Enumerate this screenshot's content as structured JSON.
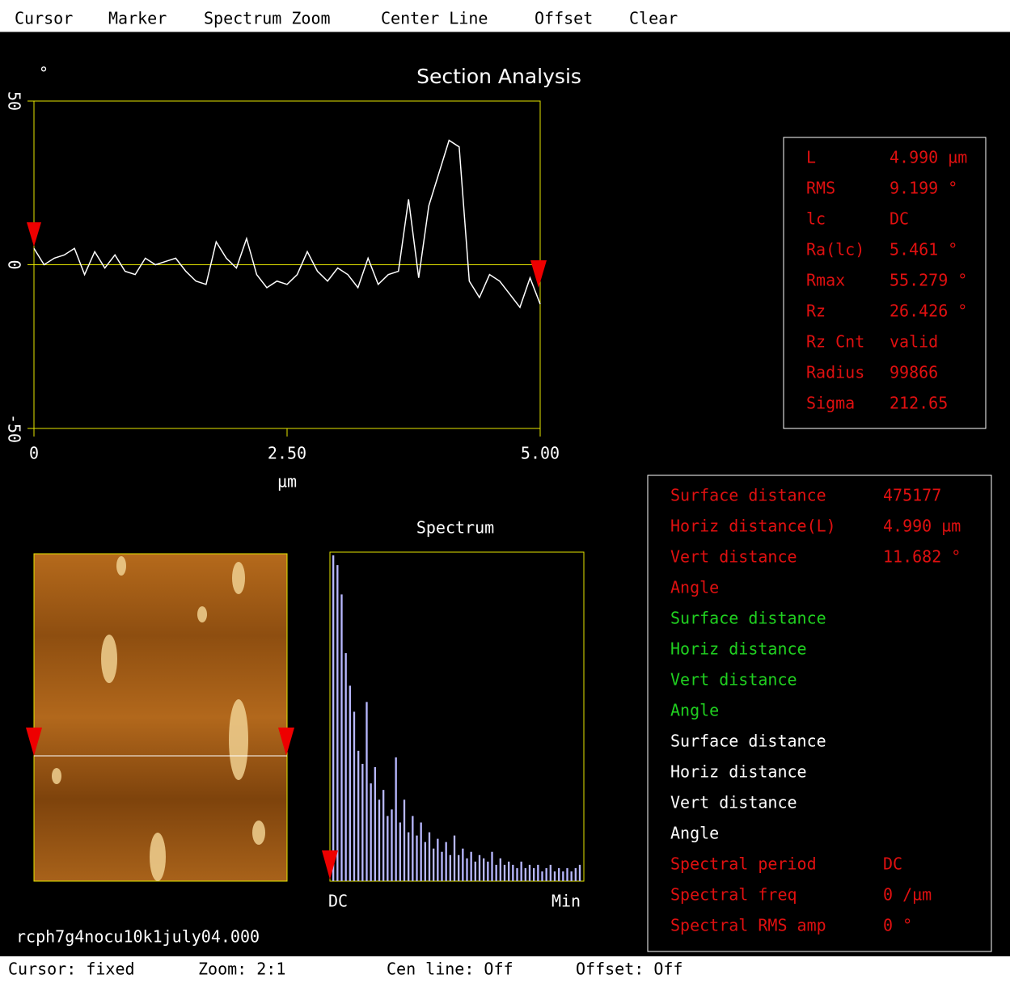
{
  "menu": [
    "Cursor",
    "Marker",
    "Spectrum Zoom",
    "Center Line",
    "Offset",
    "Clear"
  ],
  "profile": {
    "title": "Section Analysis",
    "y_unit": "°",
    "x_label": "µm",
    "x": [
      0,
      0.1,
      0.2,
      0.3,
      0.4,
      0.5,
      0.6,
      0.7,
      0.8,
      0.9,
      1.0,
      1.1,
      1.2,
      1.3,
      1.4,
      1.5,
      1.6,
      1.7,
      1.8,
      1.9,
      2.0,
      2.1,
      2.2,
      2.3,
      2.4,
      2.5,
      2.6,
      2.7,
      2.8,
      2.9,
      3.0,
      3.1,
      3.2,
      3.3,
      3.4,
      3.5,
      3.6,
      3.7,
      3.8,
      3.9,
      4.0,
      4.1,
      4.2,
      4.3,
      4.4,
      4.5,
      4.6,
      4.7,
      4.8,
      4.9,
      5.0
    ],
    "values": [
      5,
      0,
      2,
      3,
      5,
      -3,
      4,
      -1,
      3,
      -2,
      -3,
      2,
      0,
      1,
      2,
      -2,
      -5,
      -6,
      7,
      2,
      -1,
      8,
      -3,
      -7,
      -5,
      -6,
      -3,
      4,
      -2,
      -5,
      -1,
      -3,
      -7,
      2,
      -6,
      -3,
      -2,
      20,
      -4,
      18,
      28,
      38,
      36,
      -5,
      -10,
      -3,
      -5,
      -9,
      -13,
      -4,
      -12
    ],
    "color": "#ffffff",
    "frame_color": "#e6e600",
    "xlim": [
      0,
      5
    ],
    "ylim": [
      -50,
      50
    ],
    "xticks": [
      0,
      {
        "value": 2.5,
        "label": "2.50"
      },
      {
        "value": 5,
        "label": "5.00"
      }
    ],
    "yticks": [
      50,
      0,
      -50
    ]
  },
  "stats": {
    "rows": [
      {
        "label": "L",
        "value": "4.990 µm"
      },
      {
        "label": "RMS",
        "value": "9.199 °"
      },
      {
        "label": "lc",
        "value": "DC"
      },
      {
        "label": "Ra(lc)",
        "value": "5.461 °"
      },
      {
        "label": "Rmax",
        "value": "55.279 °"
      },
      {
        "label": "Rz",
        "value": "26.426 °"
      },
      {
        "label": "Rz Cnt",
        "value": "valid"
      },
      {
        "label": "Radius",
        "value": "99866"
      },
      {
        "label": "Sigma",
        "value": "212.65"
      }
    ]
  },
  "spectrum": {
    "title": "Spectrum",
    "left_label": "DC",
    "right_label": "Min",
    "color": "#b8b8ff",
    "ylim": [
      0,
      100
    ],
    "values": [
      100,
      97,
      88,
      70,
      60,
      52,
      40,
      36,
      55,
      30,
      35,
      25,
      28,
      20,
      22,
      38,
      18,
      25,
      15,
      20,
      14,
      18,
      12,
      15,
      10,
      13,
      9,
      12,
      8,
      14,
      8,
      10,
      7,
      9,
      6,
      8,
      7,
      6,
      9,
      5,
      7,
      5,
      6,
      5,
      4,
      6,
      4,
      5,
      4,
      5,
      3,
      4,
      5,
      3,
      4,
      3,
      4,
      3,
      4,
      5
    ]
  },
  "measurements": {
    "rows": [
      {
        "label": "Surface distance",
        "value": "475177",
        "color": "#e01010"
      },
      {
        "label": "Horiz distance(L)",
        "value": "4.990 µm",
        "color": "#e01010"
      },
      {
        "label": "Vert distance",
        "value": "11.682 °",
        "color": "#e01010"
      },
      {
        "label": "Angle",
        "color": "#e01010"
      },
      {
        "label": "Surface distance",
        "color": "#20d020"
      },
      {
        "label": "Horiz distance",
        "color": "#20d020"
      },
      {
        "label": "Vert distance",
        "color": "#20d020"
      },
      {
        "label": "Angle",
        "color": "#20d020"
      },
      {
        "label": "Surface distance",
        "color": "#ffffff"
      },
      {
        "label": "Horiz distance",
        "color": "#ffffff"
      },
      {
        "label": "Vert distance",
        "color": "#ffffff"
      },
      {
        "label": "Angle",
        "color": "#ffffff"
      },
      {
        "label": "Spectral period",
        "value": "DC",
        "color": "#e01010"
      },
      {
        "label": "Spectral freq",
        "value": "0 /µm",
        "color": "#e01010"
      },
      {
        "label": "Spectral RMS amp",
        "value": "0 °",
        "color": "#e01010"
      }
    ]
  },
  "filename": "rcph7g4nocu10k1july04.000",
  "status": [
    "Cursor: fixed",
    "Zoom: 2:1",
    "Cen line: Off",
    "Offset: Off"
  ]
}
